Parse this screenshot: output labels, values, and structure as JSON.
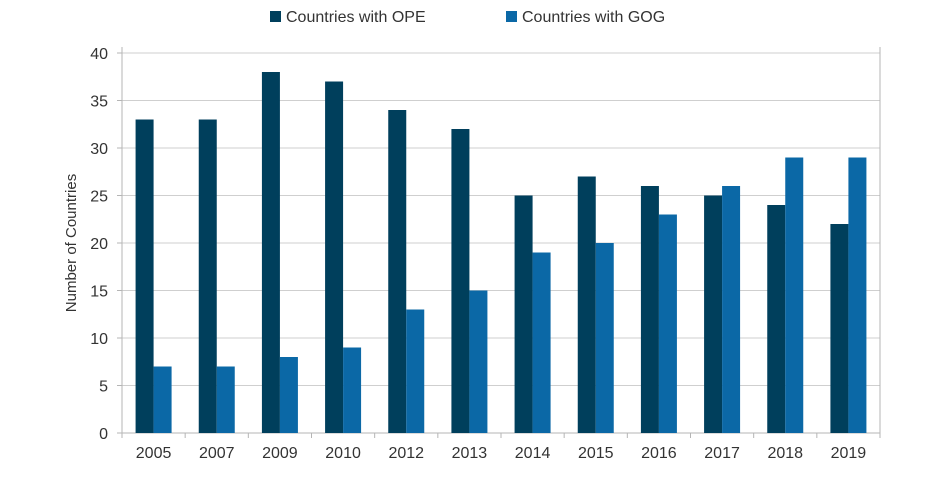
{
  "chart_data": {
    "type": "bar",
    "title": "",
    "xlabel": "",
    "ylabel": "Number of Countries",
    "ylim": [
      0,
      40
    ],
    "yticks": [
      0,
      5,
      10,
      15,
      20,
      25,
      30,
      35,
      40
    ],
    "grid": true,
    "legend_position": "top-center",
    "categories": [
      "2005",
      "2007",
      "2009",
      "2010",
      "2012",
      "2013",
      "2014",
      "2015",
      "2016",
      "2017",
      "2018",
      "2019"
    ],
    "series": [
      {
        "name": "Countries with OPE",
        "color": "#003f5c",
        "values": [
          33,
          33,
          38,
          37,
          34,
          32,
          25,
          27,
          26,
          25,
          24,
          22
        ]
      },
      {
        "name": "Countries with GOG",
        "color": "#0b68a6",
        "values": [
          7,
          7,
          8,
          9,
          13,
          15,
          19,
          20,
          23,
          26,
          29,
          29
        ]
      }
    ]
  }
}
